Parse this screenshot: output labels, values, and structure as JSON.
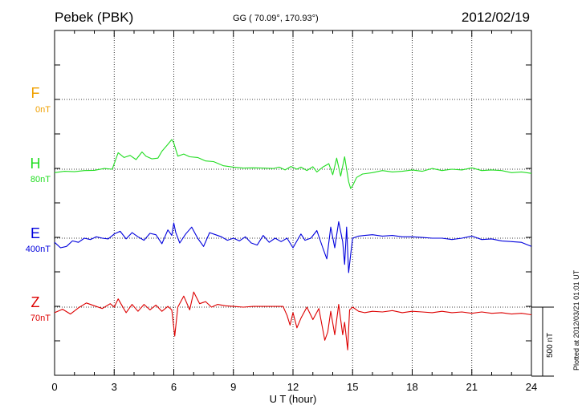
{
  "header": {
    "station": "Pebek (PBK)",
    "coords": "GG ( 70.09°, 170.93°)",
    "date": "2012/02/19"
  },
  "components": [
    {
      "key": "F",
      "letter": "F",
      "baseline": "0nT",
      "color": "#f0a000"
    },
    {
      "key": "H",
      "letter": "H",
      "baseline": "80nT",
      "color": "#22dd22"
    },
    {
      "key": "E",
      "letter": "E",
      "baseline": "400nT",
      "color": "#0000dd"
    },
    {
      "key": "Z",
      "letter": "Z",
      "baseline": "70nT",
      "color": "#dd0000"
    }
  ],
  "axis": {
    "xlabel": "U T (hour)",
    "xticks": [
      "0",
      "3",
      "6",
      "9",
      "12",
      "15",
      "18",
      "21",
      "24"
    ]
  },
  "scale_bar": "500 nT",
  "footer": "Plotted at 2012/03/21 01:01 UT",
  "chart_data": {
    "type": "line",
    "title": "Pebek (PBK)",
    "xlabel": "U T (hour)",
    "ylabel": "",
    "xlim": [
      0,
      24
    ],
    "scale_nT": 500,
    "grid": true,
    "series": [
      {
        "name": "H",
        "color": "#22dd22",
        "x": [
          0,
          0.5,
          1,
          1.5,
          2,
          2.5,
          2.9,
          3.2,
          3.5,
          3.8,
          4.1,
          4.4,
          4.6,
          4.9,
          5.2,
          5.4,
          5.7,
          5.9,
          6.0,
          6.2,
          6.5,
          6.8,
          7.2,
          7.6,
          8,
          8.5,
          9,
          9.5,
          10,
          10.5,
          11,
          11.3,
          11.6,
          11.9,
          12.2,
          12.4,
          12.7,
          13,
          13.2,
          13.5,
          13.8,
          14.0,
          14.2,
          14.4,
          14.6,
          14.8,
          14.9,
          15.0,
          15.2,
          15.5,
          16,
          16.5,
          17,
          17.5,
          18,
          18.5,
          19,
          19.5,
          20,
          20.5,
          21,
          21.5,
          22,
          22.5,
          23,
          23.5,
          24
        ],
        "y": [
          -25,
          -15,
          -18,
          -10,
          -8,
          5,
          0,
          120,
          85,
          100,
          70,
          125,
          95,
          75,
          80,
          130,
          180,
          215,
          190,
          95,
          110,
          90,
          85,
          60,
          55,
          25,
          15,
          8,
          10,
          8,
          5,
          15,
          -5,
          20,
          0,
          15,
          -10,
          18,
          -20,
          15,
          40,
          -40,
          80,
          -50,
          90,
          -90,
          -140,
          -120,
          -60,
          -35,
          -25,
          -10,
          -20,
          -15,
          -5,
          -15,
          5,
          -10,
          0,
          -5,
          10,
          -10,
          -5,
          -10,
          -25,
          -20,
          -30
        ]
      },
      {
        "name": "E",
        "color": "#0000dd",
        "x": [
          0,
          0.3,
          0.6,
          0.9,
          1.2,
          1.5,
          1.8,
          2.1,
          2.4,
          2.7,
          3.0,
          3.3,
          3.6,
          3.9,
          4.2,
          4.5,
          4.8,
          5.1,
          5.4,
          5.7,
          5.9,
          6.0,
          6.1,
          6.3,
          6.6,
          6.9,
          7.2,
          7.5,
          7.8,
          8.1,
          8.4,
          8.7,
          9.0,
          9.3,
          9.6,
          9.9,
          10.2,
          10.5,
          10.8,
          11.1,
          11.4,
          11.7,
          12.0,
          12.2,
          12.4,
          12.6,
          12.9,
          13.2,
          13.5,
          13.7,
          13.9,
          14.1,
          14.3,
          14.5,
          14.6,
          14.7,
          14.8,
          14.9,
          15.0,
          15.3,
          15.6,
          16,
          16.5,
          17,
          17.5,
          18,
          18.5,
          19,
          19.5,
          20,
          20.5,
          21,
          21.5,
          22,
          22.5,
          23,
          23.5,
          24
        ],
        "y": [
          -30,
          -70,
          -60,
          -20,
          -30,
          0,
          -10,
          10,
          0,
          -5,
          30,
          50,
          -5,
          40,
          10,
          -15,
          35,
          25,
          -40,
          60,
          20,
          110,
          40,
          -35,
          30,
          80,
          0,
          -60,
          40,
          25,
          10,
          -15,
          0,
          -20,
          10,
          -35,
          -50,
          20,
          -30,
          0,
          -25,
          0,
          -70,
          -20,
          30,
          -15,
          0,
          55,
          -70,
          -150,
          80,
          -70,
          120,
          -25,
          -190,
          80,
          -250,
          -120,
          0,
          15,
          20,
          25,
          15,
          20,
          10,
          10,
          5,
          0,
          0,
          -10,
          0,
          15,
          -10,
          -5,
          -20,
          -25,
          -30,
          -60
        ]
      },
      {
        "name": "Z",
        "color": "#dd0000",
        "x": [
          0,
          0.4,
          0.8,
          1.2,
          1.6,
          2.0,
          2.4,
          2.8,
          3.0,
          3.2,
          3.4,
          3.6,
          3.9,
          4.2,
          4.5,
          4.8,
          5.1,
          5.4,
          5.7,
          5.9,
          6.05,
          6.2,
          6.5,
          6.8,
          7.0,
          7.3,
          7.6,
          7.9,
          8.2,
          8.6,
          9,
          9.5,
          10,
          10.5,
          11,
          11.5,
          11.7,
          11.85,
          12.0,
          12.2,
          12.4,
          12.7,
          13.0,
          13.3,
          13.6,
          13.75,
          13.9,
          14.1,
          14.3,
          14.5,
          14.6,
          14.75,
          14.85,
          15.0,
          15.3,
          15.6,
          16,
          16.5,
          17,
          17.5,
          18,
          18.5,
          19,
          19.5,
          20,
          20.5,
          21,
          21.5,
          22,
          22.5,
          23,
          23.5,
          24
        ],
        "y": [
          -40,
          -15,
          -50,
          -5,
          30,
          10,
          -10,
          25,
          0,
          60,
          10,
          -40,
          20,
          -30,
          20,
          -20,
          15,
          -30,
          5,
          -20,
          -210,
          0,
          80,
          -20,
          110,
          25,
          40,
          0,
          20,
          10,
          5,
          0,
          5,
          5,
          5,
          5,
          -60,
          -130,
          -40,
          -150,
          -80,
          0,
          -90,
          -10,
          -240,
          -180,
          -30,
          -200,
          20,
          -200,
          -110,
          -310,
          -20,
          0,
          -30,
          -40,
          -30,
          -35,
          -25,
          -40,
          -30,
          -35,
          -40,
          -30,
          -40,
          -35,
          -45,
          -35,
          -45,
          -40,
          -50,
          -45,
          -55
        ]
      }
    ]
  }
}
